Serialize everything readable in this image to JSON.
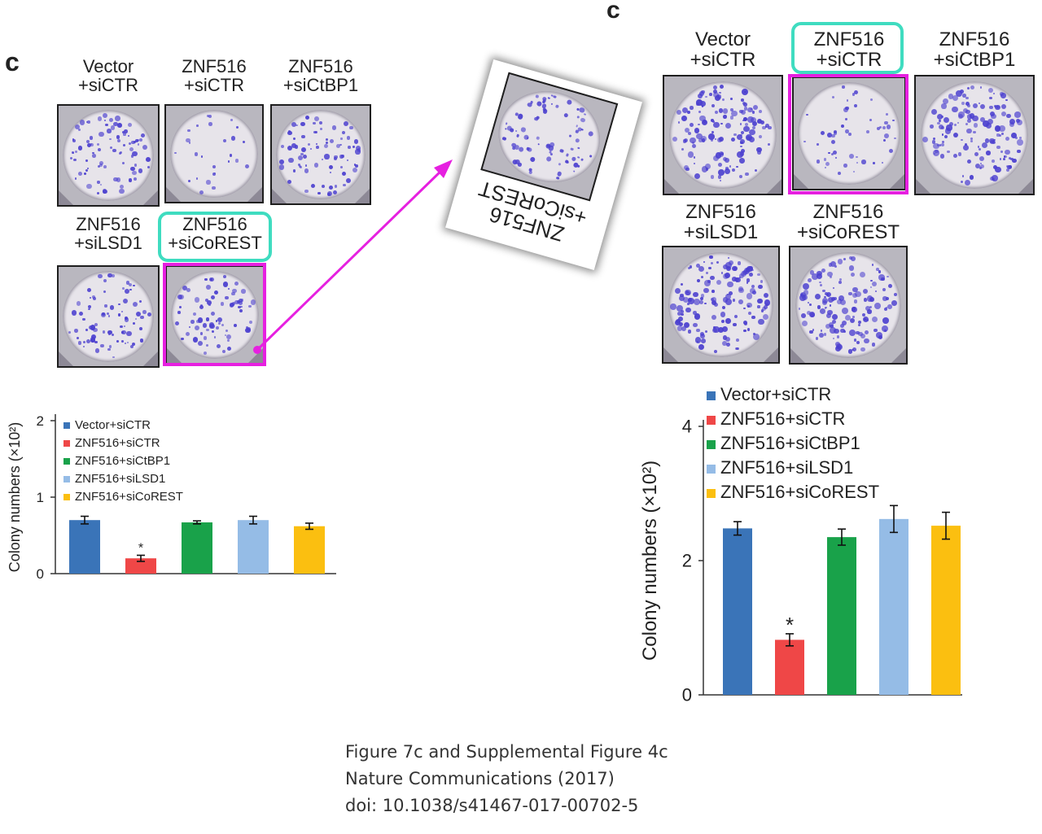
{
  "left_figure": {
    "panel_letter": "c",
    "wells": [
      {
        "line1": "Vector",
        "line2": "+siCTR",
        "colony_density": 0.55
      },
      {
        "line1": "ZNF516",
        "line2": "+siCTR",
        "colony_density": 0.12
      },
      {
        "line1": "ZNF516",
        "line2": "+siCtBP1",
        "colony_density": 0.5
      },
      {
        "line1": "ZNF516",
        "line2": "+siLSD1",
        "colony_density": 0.5
      },
      {
        "line1": "ZNF516",
        "line2": "+siCoREST",
        "colony_density": 0.5
      }
    ],
    "highlighted_label_index": 4,
    "highlighted_well_index": 4
  },
  "right_figure": {
    "panel_letter": "c",
    "wells": [
      {
        "line1": "Vector",
        "line2": "+siCTR",
        "colony_density": 0.95
      },
      {
        "line1": "ZNF516",
        "line2": "+siCTR",
        "colony_density": 0.3
      },
      {
        "line1": "ZNF516",
        "line2": "+siCtBP1",
        "colony_density": 0.95
      },
      {
        "line1": "ZNF516",
        "line2": "+siLSD1",
        "colony_density": 1.0
      },
      {
        "line1": "ZNF516",
        "line2": "+siCoREST",
        "colony_density": 1.0
      }
    ],
    "highlighted_label_index": 1,
    "highlighted_well_index": 1
  },
  "inset": {
    "line1": "ZNF516",
    "line2": "+siCoREST",
    "rotation_deg": 196,
    "arrow_color": "#e620e0"
  },
  "colors": {
    "highlight_cyan": "#3fdcc0",
    "highlight_magenta": "#e620e0",
    "colony_purple": "#4b3fcf"
  },
  "caption": {
    "line1": "Figure 7c and Supplemental Figure 4c",
    "line2": "Nature Communications (2017)",
    "line3": "doi: 10.1038/s41467-017-00702-5"
  },
  "chart_data": [
    {
      "type": "bar",
      "title": "",
      "xlabel": "",
      "ylabel": "Colony numbers (×10²)",
      "ylim": [
        0,
        2
      ],
      "yticks": [
        "0",
        "1",
        "2"
      ],
      "categories": [
        "Vector+siCTR",
        "ZNF516+siCTR",
        "ZNF516+siCtBP1",
        "ZNF516+siLSD1",
        "ZNF516+siCoREST"
      ],
      "values": [
        0.7,
        0.2,
        0.67,
        0.7,
        0.62
      ],
      "errors": [
        0.05,
        0.04,
        0.02,
        0.05,
        0.04
      ],
      "colors": [
        "#3a74b8",
        "#ef4747",
        "#19a24a",
        "#95bce6",
        "#fbbf10"
      ],
      "significance": [
        "",
        "*",
        "",
        "",
        ""
      ],
      "legend_position": "top-right",
      "grid": false
    },
    {
      "type": "bar",
      "title": "",
      "xlabel": "",
      "ylabel": "Colony numbers (×10²)",
      "ylim": [
        0,
        4
      ],
      "yticks": [
        "0",
        "2",
        "4"
      ],
      "categories": [
        "Vector+siCTR",
        "ZNF516+siCTR",
        "ZNF516+siCtBP1",
        "ZNF516+siLSD1",
        "ZNF516+siCoREST"
      ],
      "values": [
        2.48,
        0.82,
        2.35,
        2.62,
        2.52
      ],
      "errors": [
        0.1,
        0.09,
        0.12,
        0.2,
        0.2
      ],
      "colors": [
        "#3a74b8",
        "#ef4747",
        "#19a24a",
        "#95bce6",
        "#fbbf10"
      ],
      "significance": [
        "",
        "*",
        "",
        "",
        ""
      ],
      "legend_position": "top-left",
      "grid": false
    }
  ]
}
